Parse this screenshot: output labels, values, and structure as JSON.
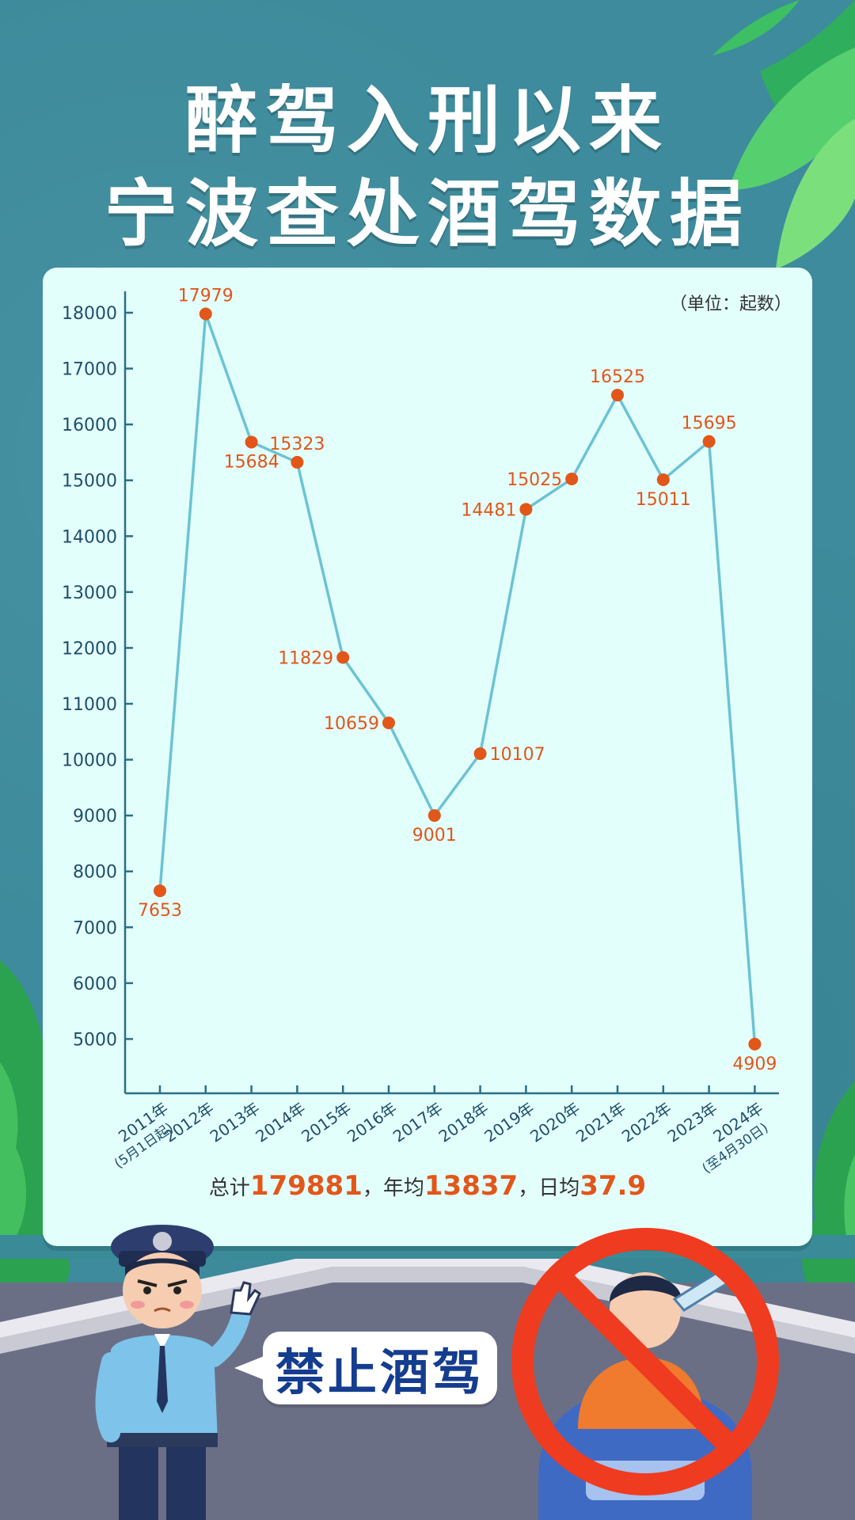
{
  "header": {
    "title_line1": "醉驾入刑以来",
    "title_line2": "宁波查处酒驾数据"
  },
  "chart_data": {
    "type": "line",
    "unit_label": "（单位：起数）",
    "categories": [
      [
        "2011年",
        "(5月1日起)"
      ],
      [
        "2012年"
      ],
      [
        "2013年"
      ],
      [
        "2014年"
      ],
      [
        "2015年"
      ],
      [
        "2016年"
      ],
      [
        "2017年"
      ],
      [
        "2018年"
      ],
      [
        "2019年"
      ],
      [
        "2020年"
      ],
      [
        "2021年"
      ],
      [
        "2022年"
      ],
      [
        "2023年"
      ],
      [
        "2024年",
        "(至4月30日)"
      ]
    ],
    "values": [
      7653,
      17979,
      15684,
      15323,
      11829,
      10659,
      9001,
      10107,
      14481,
      15025,
      16525,
      15011,
      15695,
      4909
    ],
    "label_positions": [
      "below",
      "above",
      "below",
      "above",
      "left",
      "left",
      "below",
      "right",
      "left",
      "left",
      "above",
      "below",
      "above",
      "below"
    ],
    "y_ticks": [
      5000,
      6000,
      7000,
      8000,
      9000,
      10000,
      11000,
      12000,
      13000,
      14000,
      15000,
      16000,
      17000,
      18000
    ],
    "ylim": [
      4000,
      18000
    ],
    "line_color": "#6cc3d4",
    "point_color": "#e2561a",
    "axis_color": "#2a6f85",
    "grid": false
  },
  "summary": {
    "total_label": "总计",
    "total_value": "179881",
    "sep1": "，",
    "avg_year_label": "年均",
    "avg_year_value": "13837",
    "sep2": "，",
    "avg_day_label": "日均",
    "avg_day_value": "37.9"
  },
  "banner": {
    "text": "禁止酒驾"
  }
}
